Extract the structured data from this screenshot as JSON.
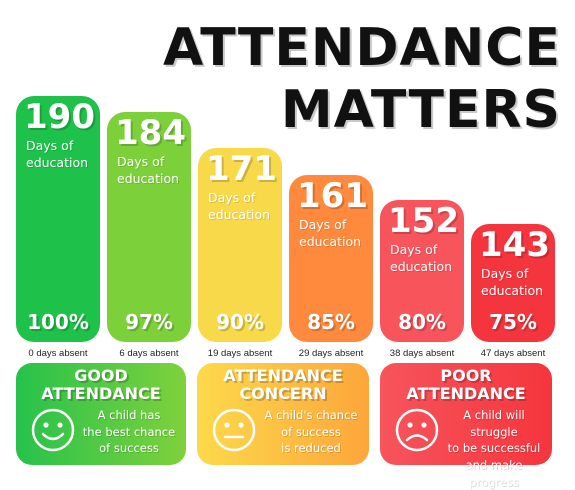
{
  "title": {
    "line1": "ATTENDANCE",
    "line2": "MATTERS"
  },
  "chart_data": {
    "type": "bar",
    "categories": [
      "0 days absent",
      "6 days absent",
      "19 days absent",
      "29 days absent",
      "38 days absent",
      "47 days absent"
    ],
    "values": [
      190,
      184,
      171,
      161,
      152,
      143
    ],
    "value_sublabel": "Days of education",
    "percentages": [
      "100%",
      "97%",
      "90%",
      "85%",
      "80%",
      "75%"
    ],
    "colors": [
      "#1ec24a",
      "#7cd13b",
      "#f8d94a",
      "#ff8a3d",
      "#f7545c",
      "#f5353d"
    ],
    "title": "ATTENDANCE MATTERS"
  },
  "cards": [
    {
      "title_line1": "GOOD",
      "title_line2": "ATTENDANCE",
      "desc_line1": "A child has",
      "desc_line2": "the best chance",
      "desc_line3": "of success",
      "face": "smile-icon",
      "color": "#56c84a"
    },
    {
      "title_line1": "ATTENDANCE",
      "title_line2": "CONCERN",
      "desc_line1": "A child's chance",
      "desc_line2": "of success",
      "desc_line3": "is reduced",
      "face": "neutral-face-icon",
      "color": "#fdbd3a"
    },
    {
      "title_line1": "POOR",
      "title_line2": "ATTENDANCE",
      "desc_line1": "A child will struggle",
      "desc_line2": "to be successful",
      "desc_line3": "and make progress",
      "face": "sad-face-icon",
      "color": "#f5434a"
    }
  ]
}
